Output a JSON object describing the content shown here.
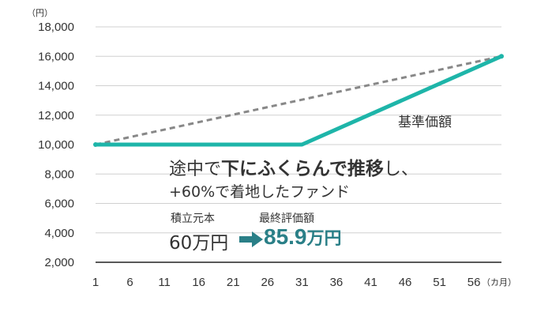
{
  "chart_data": {
    "type": "line",
    "y_unit": "（円）",
    "x_unit": "（カ月）",
    "ylim": [
      2000,
      18000
    ],
    "xlim": [
      1,
      60
    ],
    "y_ticks": [
      2000,
      4000,
      6000,
      8000,
      10000,
      12000,
      14000,
      16000,
      18000
    ],
    "y_tick_labels": [
      "2,000",
      "4,000",
      "6,000",
      "8,000",
      "10,000",
      "12,000",
      "14,000",
      "16,000",
      "18,000"
    ],
    "x_ticks": [
      1,
      6,
      11,
      16,
      21,
      26,
      31,
      36,
      41,
      46,
      51,
      56
    ],
    "x_tick_labels": [
      "1",
      "6",
      "11",
      "16",
      "21",
      "26",
      "31",
      "36",
      "41",
      "46",
      "51",
      "56"
    ],
    "grid": true,
    "series": [
      {
        "name": "基準価額",
        "style": "solid",
        "color": "#1eb5a9",
        "points": [
          [
            1,
            10000
          ],
          [
            31,
            10000
          ],
          [
            60,
            16000
          ]
        ]
      },
      {
        "style": "dashed",
        "color": "#888888",
        "points": [
          [
            1,
            10000
          ],
          [
            60,
            16000
          ]
        ]
      }
    ]
  },
  "annotation": {
    "line1_pre": "途中で",
    "line1_bold": "下にふくらんで推移",
    "line1_post": "し、",
    "line2": "+60%で着地したファンド",
    "principal_label": "積立元本",
    "principal_value": "60万円",
    "final_label": "最終評価額",
    "final_value_num": "85.9",
    "final_value_suffix": "万円",
    "accent_color": "#2a7f87"
  }
}
